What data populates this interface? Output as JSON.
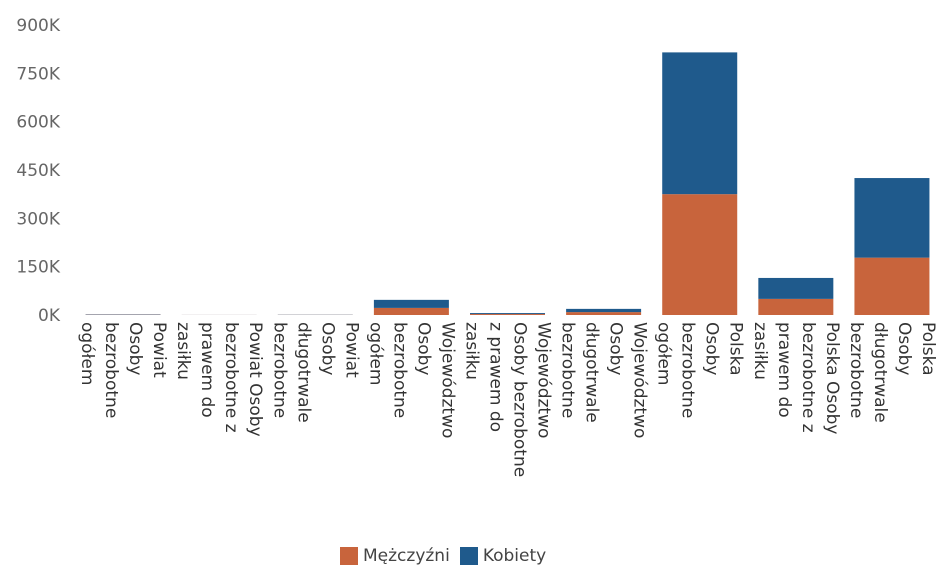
{
  "chart_data": {
    "type": "bar",
    "stacked": true,
    "orientation": "vertical",
    "categories": [
      "Powiat Osoby bezrobotne ogółem",
      "Powiat Osoby bezrobotne z prawem do zasiłku",
      "Powiat Osoby długotrwale bezrobotne",
      "Województwo Osoby bezrobotne ogółem",
      "Województwo Osoby bezrobotne z prawem do zasiłku",
      "Województwo Osoby długotrwale bezrobotne",
      "Polska Osoby bezrobotne ogółem",
      "Polska Osoby bezrobotne z prawem do zasiłku",
      "Polska Osoby długotrwale bezrobotne"
    ],
    "category_lines": [
      [
        "Powiat",
        "Osoby",
        "bezrobotne",
        "ogółem"
      ],
      [
        "Powiat Osoby",
        "bezrobotne z",
        "prawem do",
        "zasiłku"
      ],
      [
        "Powiat",
        "Osoby",
        "długotrwale",
        "bezrobotne"
      ],
      [
        "Województwo",
        "Osoby",
        "bezrobotne",
        "ogółem"
      ],
      [
        "Województwo",
        "Osoby bezrobotne",
        "z prawem do",
        "zasiłku"
      ],
      [
        "Województwo",
        "Osoby",
        "długotrwale",
        "bezrobotne"
      ],
      [
        "Polska",
        "Osoby",
        "bezrobotne",
        "ogółem"
      ],
      [
        "Polska Osoby",
        "bezrobotne z",
        "prawem do",
        "zasiłku"
      ],
      [
        "Polska",
        "Osoby",
        "długotrwale",
        "bezrobotne"
      ]
    ],
    "series": [
      {
        "name": "Mężczyźni",
        "color": "#C8643C",
        "values": [
          1000,
          150,
          500,
          22000,
          3000,
          9000,
          375000,
          50000,
          178000
        ]
      },
      {
        "name": "Kobiety",
        "color": "#1F5A8C",
        "values": [
          1100,
          150,
          550,
          25000,
          3000,
          10000,
          440000,
          65000,
          247000
        ]
      }
    ],
    "ylim": [
      0,
      900000
    ],
    "y_ticks": [
      0,
      150000,
      300000,
      450000,
      600000,
      750000,
      900000
    ],
    "y_tick_labels": [
      "0K",
      "150K",
      "300K",
      "450K",
      "600K",
      "750K",
      "900K"
    ],
    "legend_position": "bottom",
    "grid": false
  }
}
